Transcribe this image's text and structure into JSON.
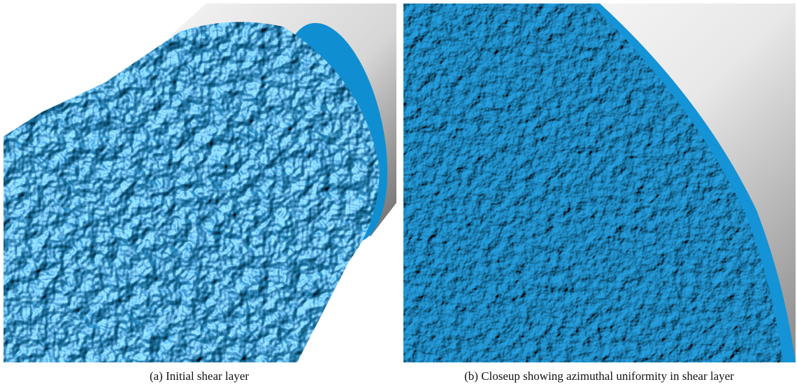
{
  "figures": [
    {
      "caption": "(a) Initial shear layer"
    },
    {
      "caption": "(b) Closeup showing azimuthal uniformity in shear layer"
    }
  ]
}
